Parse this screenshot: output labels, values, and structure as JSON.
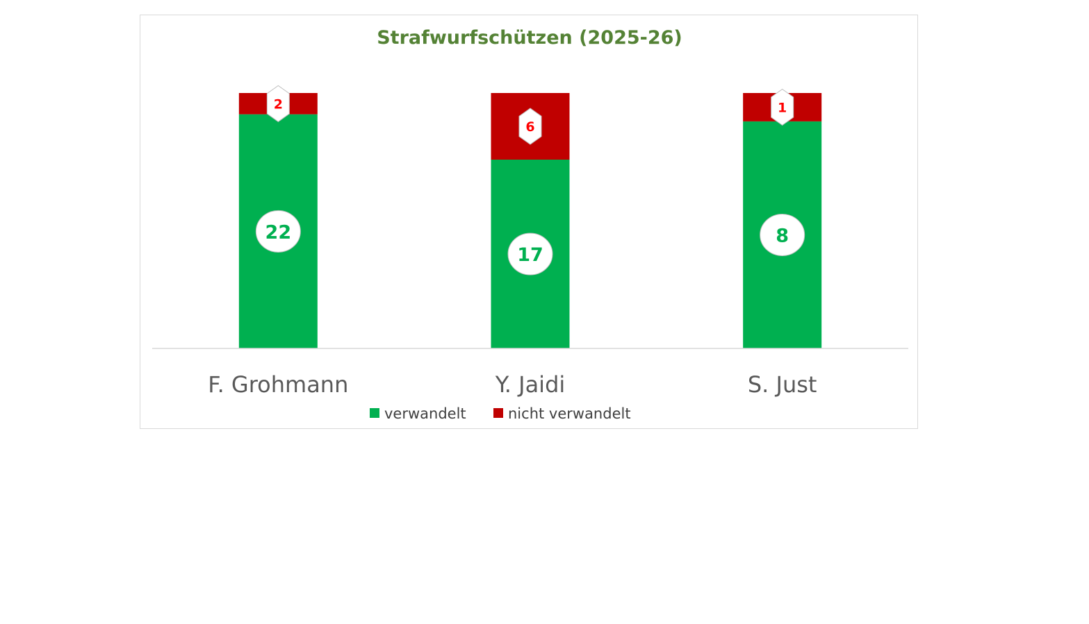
{
  "chart_data": {
    "type": "bar",
    "stacked": true,
    "title": "Strafwurfschützen (2025-26)",
    "categories": [
      "F. Grohmann",
      "Y. Jaidi",
      "S. Just"
    ],
    "series": [
      {
        "name": "verwandelt",
        "values": [
          22,
          17,
          8
        ],
        "color": "#00b050"
      },
      {
        "name": "nicht verwandelt",
        "values": [
          2,
          6,
          1
        ],
        "color": "#c00000"
      }
    ],
    "normalized": true,
    "ylim": [
      0,
      1
    ],
    "grid": false,
    "legend": "bottom",
    "data_labels": true
  },
  "colors": {
    "title": "#548235",
    "axis": "#d9d9d9",
    "category_text": "#595959",
    "label_green": "#00b050",
    "label_red": "#ff0000"
  }
}
